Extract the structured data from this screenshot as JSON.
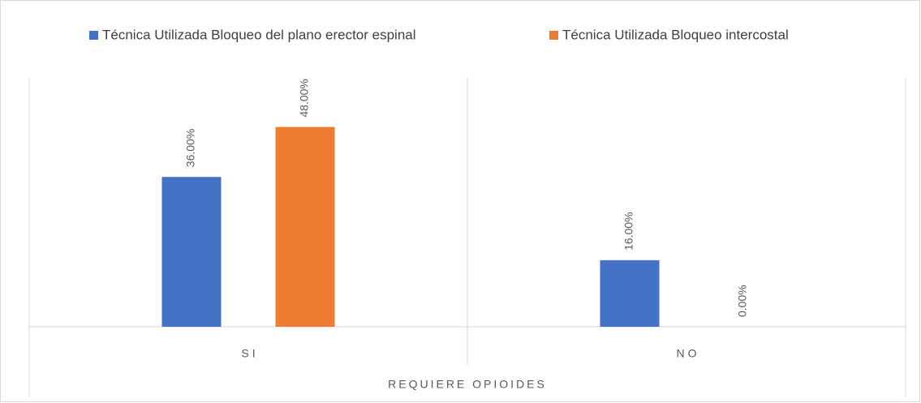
{
  "chart_data": {
    "type": "bar",
    "categories": [
      "SI",
      "NO"
    ],
    "x_label": "REQUIERE OPIOIDES",
    "series": [
      {
        "name": "Técnica Utilizada Bloqueo del plano erector espinal",
        "color": "#4472c4",
        "values": [
          36,
          16
        ],
        "value_labels": [
          "36.00%",
          "16.00%"
        ]
      },
      {
        "name": "Técnica Utilizada Bloqueo intercostal",
        "color": "#ed7d31",
        "values": [
          48,
          0
        ],
        "value_labels": [
          "48.00%",
          "0.00%"
        ]
      }
    ],
    "ylim": [
      0,
      60
    ],
    "legend": "top"
  }
}
